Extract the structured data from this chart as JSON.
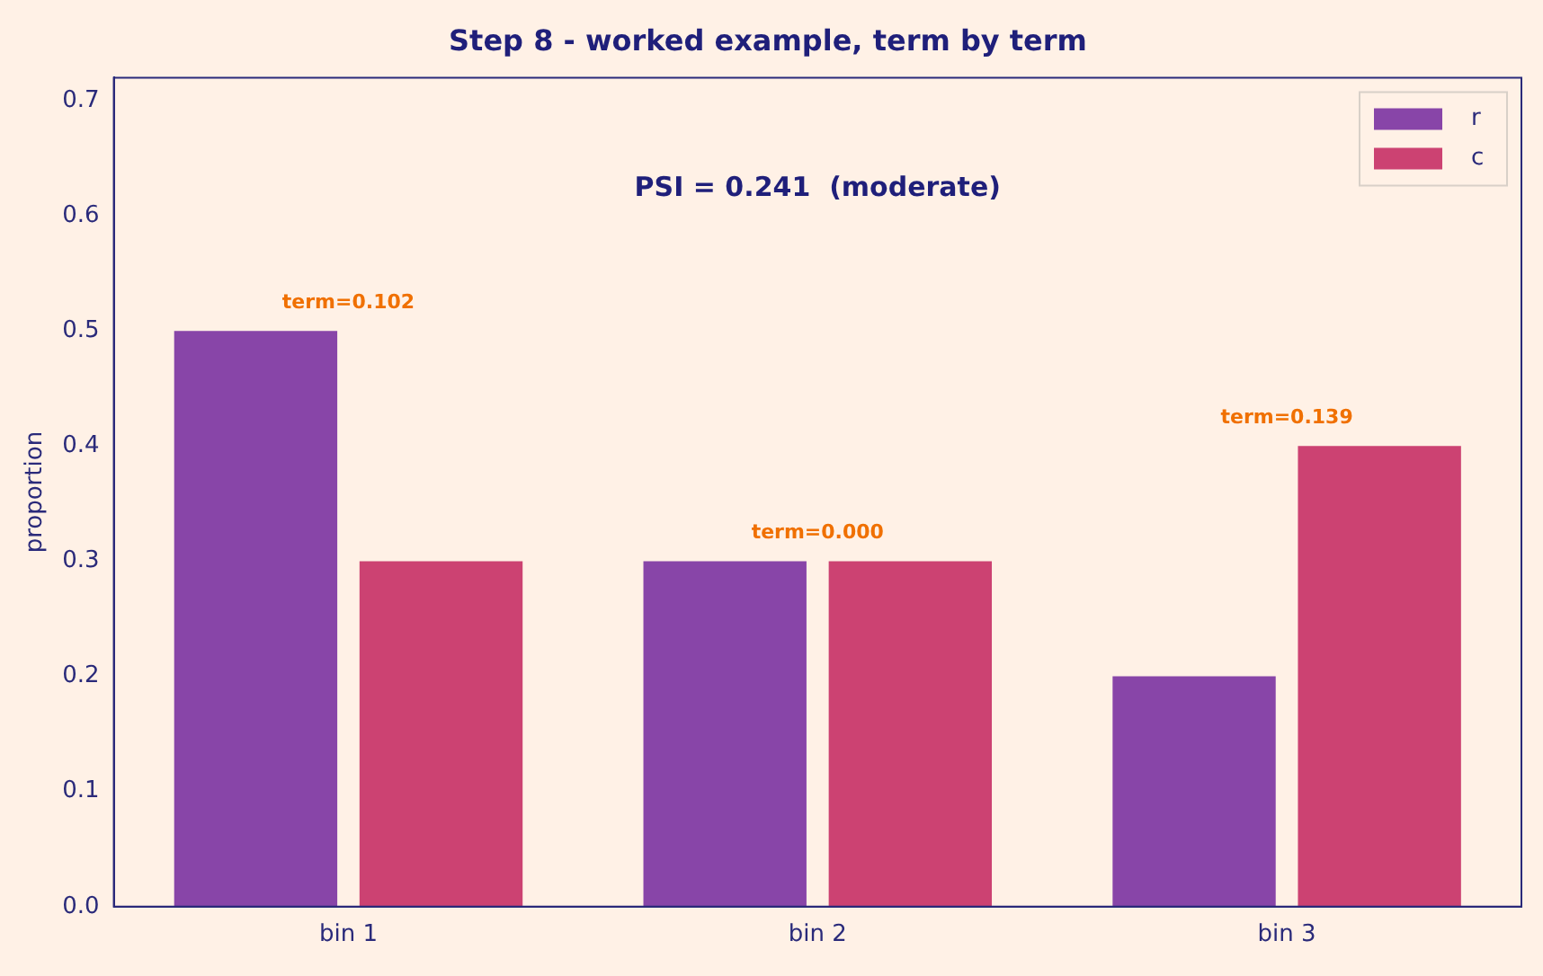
{
  "chart_data": {
    "type": "bar",
    "title": "Step 8 - worked example, term by term",
    "ylabel": "proportion",
    "categories": [
      "bin 1",
      "bin 2",
      "bin 3"
    ],
    "series": [
      {
        "name": "r",
        "color": "#8845a8",
        "values": [
          0.5,
          0.3,
          0.2
        ]
      },
      {
        "name": "c",
        "color": "#cc4272",
        "values": [
          0.3,
          0.3,
          0.4
        ]
      }
    ],
    "ylim": [
      0,
      0.72
    ],
    "yticks": [
      {
        "value": 0,
        "label": "0.0"
      },
      0.1,
      0.2,
      0.3,
      0.4,
      0.5,
      0.6,
      0.7
    ],
    "grid": false,
    "legend": "top right",
    "annotations": [
      "PSI = 0.241  (moderate)",
      "term=0.102",
      "term=0.000",
      "term=0.139"
    ]
  }
}
